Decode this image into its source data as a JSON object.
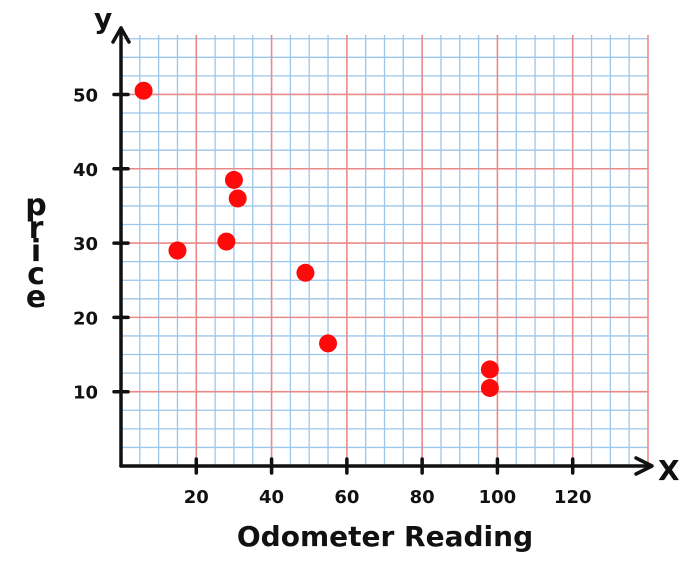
{
  "chart_data": {
    "type": "scatter",
    "title": "",
    "xlabel": "Odometer Reading",
    "ylabel": "price",
    "x_axis_name": "X",
    "y_axis_name": "y",
    "xlim": [
      0,
      140
    ],
    "ylim": [
      0,
      58
    ],
    "grid": true,
    "x_ticks": [
      {
        "value": 20,
        "label": "20"
      },
      {
        "value": 40,
        "label": "40"
      },
      {
        "value": 60,
        "label": "60"
      },
      {
        "value": 80,
        "label": "80"
      },
      {
        "value": 100,
        "label": "100"
      },
      {
        "value": 120,
        "label": "120"
      }
    ],
    "y_ticks": [
      {
        "value": 10,
        "label": "10"
      },
      {
        "value": 20,
        "label": "20"
      },
      {
        "value": 30,
        "label": "30"
      },
      {
        "value": 40,
        "label": "40"
      },
      {
        "value": 50,
        "label": "50"
      }
    ],
    "points": [
      {
        "x": 6,
        "y": 50.5
      },
      {
        "x": 15,
        "y": 29
      },
      {
        "x": 28,
        "y": 30.2
      },
      {
        "x": 30,
        "y": 38.5
      },
      {
        "x": 31,
        "y": 36
      },
      {
        "x": 49,
        "y": 26
      },
      {
        "x": 55,
        "y": 16.5
      },
      {
        "x": 98,
        "y": 13
      },
      {
        "x": 98,
        "y": 10.5
      }
    ],
    "colors": {
      "point": "#ff0a0a",
      "grid_major": "#e98a8a",
      "grid_minor": "#9cc6ea",
      "axis": "#111111"
    }
  }
}
